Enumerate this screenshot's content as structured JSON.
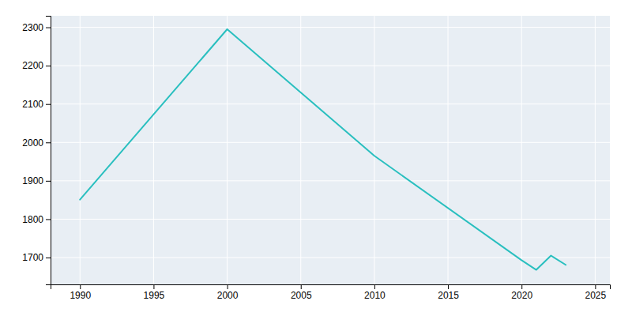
{
  "chart_data": {
    "type": "line",
    "x": [
      1990,
      2000,
      2010,
      2020,
      2021,
      2022,
      2023
    ],
    "values": [
      1851,
      2295,
      1965,
      1693,
      1668,
      1705,
      1681
    ],
    "color": "#29BFBF",
    "xlim": [
      1988,
      2026
    ],
    "ylim": [
      1630,
      2330
    ],
    "xticks": [
      1990,
      1995,
      2000,
      2005,
      2010,
      2015,
      2020,
      2025
    ],
    "yticks": [
      1700,
      1800,
      1900,
      2000,
      2100,
      2200,
      2300
    ],
    "grid": true
  }
}
